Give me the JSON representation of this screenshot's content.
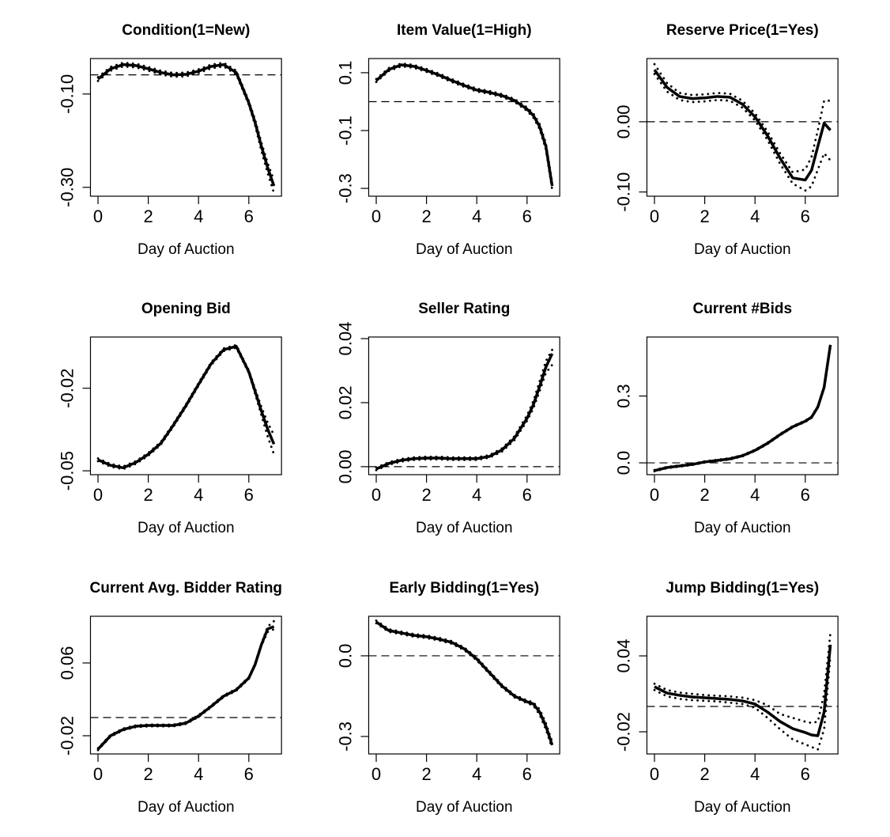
{
  "chart_data": [
    {
      "type": "line",
      "title": "Condition(1=New)",
      "xlabel": "Day of Auction",
      "color": "#000000",
      "x": [
        0,
        0.5,
        1,
        1.5,
        2,
        2.5,
        3,
        3.5,
        4,
        4.5,
        5,
        5.5,
        6,
        6.25,
        6.5,
        6.75,
        7
      ],
      "values": [
        -0.068,
        -0.046,
        -0.037,
        -0.039,
        -0.046,
        -0.054,
        -0.059,
        -0.058,
        -0.051,
        -0.041,
        -0.037,
        -0.054,
        -0.119,
        -0.161,
        -0.212,
        -0.258,
        -0.297
      ],
      "lower": [
        -0.072,
        -0.05,
        -0.041,
        -0.043,
        -0.05,
        -0.058,
        -0.063,
        -0.062,
        -0.055,
        -0.045,
        -0.041,
        -0.058,
        -0.123,
        -0.167,
        -0.222,
        -0.27,
        -0.312
      ],
      "upper": [
        -0.064,
        -0.042,
        -0.033,
        -0.035,
        -0.042,
        -0.05,
        -0.055,
        -0.054,
        -0.047,
        -0.037,
        -0.033,
        -0.05,
        -0.115,
        -0.155,
        -0.204,
        -0.248,
        -0.285
      ],
      "hline": -0.059,
      "xlim": [
        -0.3,
        7.3
      ],
      "ylim": [
        -0.319,
        -0.024
      ],
      "xticks": [
        0,
        2,
        4,
        6
      ],
      "yticks": [
        {
          "value": -0.1,
          "label": "-0.10"
        },
        {
          "value": -0.3,
          "label": "-0.30"
        }
      ]
    },
    {
      "type": "line",
      "title": "Item Value(1=High)",
      "xlabel": "Day of Auction",
      "color": "#000000",
      "x": [
        0,
        0.5,
        1,
        1.5,
        2,
        2.5,
        3,
        3.5,
        4,
        4.5,
        5,
        5.5,
        6,
        6.25,
        6.5,
        6.75,
        7
      ],
      "values": [
        0.073,
        0.111,
        0.127,
        0.122,
        0.108,
        0.092,
        0.073,
        0.056,
        0.04,
        0.032,
        0.021,
        0.004,
        -0.026,
        -0.048,
        -0.086,
        -0.155,
        -0.292
      ],
      "lower": [
        0.068,
        0.106,
        0.122,
        0.117,
        0.103,
        0.087,
        0.068,
        0.051,
        0.035,
        0.027,
        0.016,
        -0.001,
        -0.032,
        -0.055,
        -0.095,
        -0.166,
        -0.305
      ],
      "upper": [
        0.078,
        0.116,
        0.132,
        0.127,
        0.113,
        0.097,
        0.078,
        0.061,
        0.045,
        0.037,
        0.026,
        0.009,
        -0.02,
        -0.041,
        -0.077,
        -0.144,
        -0.28
      ],
      "hline": 0,
      "xlim": [
        -0.3,
        7.3
      ],
      "ylim": [
        -0.327,
        0.149
      ],
      "xticks": [
        0,
        2,
        4,
        6
      ],
      "yticks": [
        0.1,
        -0.1,
        -0.3
      ]
    },
    {
      "type": "line",
      "title": "Reserve Price(1=Yes)",
      "xlabel": "Day of Auction",
      "color": "#000000",
      "x": [
        0,
        0.5,
        1,
        1.5,
        2,
        2.5,
        3,
        3.5,
        4,
        4.5,
        5,
        5.5,
        6,
        6.25,
        6.5,
        6.75,
        7
      ],
      "values": [
        0.074,
        0.049,
        0.036,
        0.033,
        0.034,
        0.036,
        0.035,
        0.025,
        0.007,
        -0.02,
        -0.052,
        -0.08,
        -0.083,
        -0.069,
        -0.035,
        -0.002,
        -0.012
      ],
      "lower": [
        0.068,
        0.043,
        0.031,
        0.028,
        0.029,
        0.031,
        0.03,
        0.02,
        0.002,
        -0.026,
        -0.06,
        -0.088,
        -0.098,
        -0.092,
        -0.068,
        -0.045,
        -0.055
      ],
      "upper": [
        0.082,
        0.055,
        0.041,
        0.038,
        0.039,
        0.041,
        0.04,
        0.03,
        0.012,
        -0.014,
        -0.045,
        -0.072,
        -0.068,
        -0.05,
        -0.012,
        0.03,
        0.03
      ],
      "hline": 0,
      "xlim": [
        -0.3,
        7.3
      ],
      "ylim": [
        -0.106,
        0.09
      ],
      "xticks": [
        0,
        2,
        4,
        6
      ],
      "yticks": [
        {
          "value": 0,
          "label": "0.00"
        },
        {
          "value": -0.1,
          "label": "-0.10"
        }
      ]
    },
    {
      "type": "line",
      "title": "Opening Bid",
      "xlabel": "Day of Auction",
      "color": "#000000",
      "x": [
        0,
        0.5,
        1,
        1.5,
        2,
        2.5,
        3,
        3.5,
        4,
        4.5,
        5,
        5.5,
        6,
        6.25,
        6.5,
        6.75,
        7
      ],
      "values": [
        -0.046,
        -0.048,
        -0.0489,
        -0.047,
        -0.044,
        -0.04,
        -0.0334,
        -0.0263,
        -0.0186,
        -0.0111,
        -0.006,
        -0.0048,
        -0.014,
        -0.0211,
        -0.0283,
        -0.0349,
        -0.0403
      ],
      "lower": [
        -0.0465,
        -0.0485,
        -0.0494,
        -0.0475,
        -0.0445,
        -0.0405,
        -0.0339,
        -0.0268,
        -0.0191,
        -0.0116,
        -0.0065,
        -0.0053,
        -0.0145,
        -0.022,
        -0.0298,
        -0.0375,
        -0.044
      ],
      "upper": [
        -0.0455,
        -0.0475,
        -0.0484,
        -0.0465,
        -0.0435,
        -0.0395,
        -0.0329,
        -0.0258,
        -0.0181,
        -0.0106,
        -0.0055,
        -0.0043,
        -0.0135,
        -0.0202,
        -0.0268,
        -0.0325,
        -0.037
      ],
      "xlim": [
        -0.3,
        7.3
      ],
      "ylim": [
        -0.0514,
        -0.0014
      ],
      "xticks": [
        0,
        2,
        4,
        6
      ],
      "yticks": [
        -0.02,
        -0.05
      ]
    },
    {
      "type": "line",
      "title": "Seller Rating",
      "xlabel": "Day of Auction",
      "color": "#000000",
      "x": [
        0,
        0.5,
        1,
        1.5,
        2,
        2.5,
        3,
        3.5,
        4,
        4.5,
        5,
        5.5,
        6,
        6.25,
        6.5,
        6.75,
        7
      ],
      "values": [
        -0.0007,
        0.001,
        0.002,
        0.0025,
        0.0027,
        0.0027,
        0.0025,
        0.0025,
        0.0025,
        0.0032,
        0.0052,
        0.0089,
        0.0151,
        0.0193,
        0.025,
        0.0311,
        0.0353
      ],
      "lower": [
        -0.0011,
        0.0006,
        0.0016,
        0.0021,
        0.0023,
        0.0023,
        0.0021,
        0.0021,
        0.0021,
        0.0028,
        0.0047,
        0.0083,
        0.0143,
        0.0182,
        0.0236,
        0.0293,
        0.0318
      ],
      "upper": [
        -0.0003,
        0.0014,
        0.0024,
        0.0029,
        0.0031,
        0.0031,
        0.0029,
        0.0029,
        0.0029,
        0.0036,
        0.0057,
        0.0095,
        0.016,
        0.0205,
        0.0266,
        0.033,
        0.0365
      ],
      "hline": 0,
      "xlim": [
        -0.3,
        7.3
      ],
      "ylim": [
        -0.0025,
        0.0405
      ],
      "xticks": [
        0,
        2,
        4,
        6
      ],
      "yticks": [
        {
          "value": 0,
          "label": "0.00"
        },
        0.02,
        0.04
      ]
    },
    {
      "type": "line",
      "title": "Current #Bids",
      "xlabel": "Day of Auction",
      "color": "#000000",
      "x": [
        0,
        0.5,
        1,
        1.5,
        2,
        2.5,
        3,
        3.5,
        4,
        4.5,
        5,
        5.5,
        6,
        6.25,
        6.5,
        6.75,
        7
      ],
      "values": [
        -0.035,
        -0.021,
        -0.014,
        -0.007,
        0.004,
        0.011,
        0.018,
        0.032,
        0.056,
        0.088,
        0.127,
        0.162,
        0.187,
        0.205,
        0.251,
        0.339,
        0.53
      ],
      "lower": [
        -0.038,
        -0.024,
        -0.017,
        -0.01,
        0.001,
        0.008,
        0.015,
        0.029,
        0.053,
        0.085,
        0.124,
        0.159,
        0.184,
        0.202,
        0.248,
        0.336,
        0.527
      ],
      "upper": [
        -0.032,
        -0.018,
        -0.011,
        -0.004,
        0.007,
        0.014,
        0.021,
        0.035,
        0.059,
        0.091,
        0.13,
        0.165,
        0.19,
        0.208,
        0.254,
        0.342,
        0.533
      ],
      "hline": 0,
      "xlim": [
        -0.3,
        7.3
      ],
      "ylim": [
        -0.053,
        0.565
      ],
      "xticks": [
        0,
        2,
        4,
        6
      ],
      "yticks": [
        {
          "value": 0,
          "label": "0.0"
        },
        0.3
      ]
    },
    {
      "type": "line",
      "title": "Current Avg. Bidder Rating",
      "xlabel": "Day of Auction",
      "color": "#000000",
      "x": [
        0,
        0.5,
        1,
        1.5,
        2,
        2.5,
        3,
        3.5,
        4,
        4.5,
        5,
        5.5,
        6,
        6.25,
        6.5,
        6.75,
        7
      ],
      "values": [
        -0.0348,
        -0.02,
        -0.0131,
        -0.0096,
        -0.0087,
        -0.0087,
        -0.0087,
        -0.0061,
        0.0017,
        0.0122,
        0.0235,
        0.0304,
        0.0435,
        0.0583,
        0.08,
        0.0974,
        0.1
      ],
      "lower": [
        -0.0358,
        -0.021,
        -0.0141,
        -0.0106,
        -0.0097,
        -0.0097,
        -0.0097,
        -0.0071,
        0.0007,
        0.0112,
        0.0225,
        0.0294,
        0.0425,
        0.0573,
        0.079,
        0.094,
        0.097
      ],
      "upper": [
        -0.0338,
        -0.019,
        -0.0121,
        -0.0086,
        -0.0077,
        -0.0077,
        -0.0077,
        -0.0051,
        0.0027,
        0.0132,
        0.0245,
        0.0314,
        0.0445,
        0.0593,
        0.081,
        0.1,
        0.106
      ],
      "hline": 0,
      "xlim": [
        -0.3,
        7.3
      ],
      "ylim": [
        -0.04,
        0.1113
      ],
      "xticks": [
        0,
        2,
        4,
        6
      ],
      "yticks": [
        0.06,
        -0.02
      ]
    },
    {
      "type": "line",
      "title": "Early Bidding(1=Yes)",
      "xlabel": "Day of Auction",
      "color": "#000000",
      "x": [
        0,
        0.5,
        1,
        1.5,
        2,
        2.5,
        3,
        3.5,
        4,
        4.5,
        5,
        5.5,
        6,
        6.25,
        6.5,
        6.75,
        7
      ],
      "values": [
        0.126,
        0.094,
        0.085,
        0.076,
        0.071,
        0.062,
        0.05,
        0.026,
        -0.012,
        -0.062,
        -0.112,
        -0.15,
        -0.171,
        -0.179,
        -0.209,
        -0.262,
        -0.332
      ],
      "lower": [
        0.121,
        0.089,
        0.08,
        0.071,
        0.066,
        0.057,
        0.045,
        0.021,
        -0.017,
        -0.067,
        -0.117,
        -0.155,
        -0.176,
        -0.185,
        -0.219,
        -0.274,
        -0.344
      ],
      "upper": [
        0.131,
        0.099,
        0.09,
        0.081,
        0.076,
        0.067,
        0.055,
        0.031,
        -0.007,
        -0.057,
        -0.107,
        -0.145,
        -0.166,
        -0.173,
        -0.199,
        -0.25,
        -0.32
      ],
      "hline": 0,
      "xlim": [
        -0.3,
        7.3
      ],
      "ylim": [
        -0.365,
        0.147
      ],
      "xticks": [
        0,
        2,
        4,
        6
      ],
      "yticks": [
        {
          "value": 0,
          "label": "0.0"
        },
        -0.3
      ]
    },
    {
      "type": "line",
      "title": "Jump Bidding(1=Yes)",
      "xlabel": "Day of Auction",
      "color": "#000000",
      "x": [
        0,
        0.5,
        1,
        1.5,
        2,
        2.5,
        3,
        3.5,
        4,
        4.5,
        5,
        5.5,
        6,
        6.25,
        6.5,
        6.75,
        7
      ],
      "values": [
        0.0156,
        0.0106,
        0.0088,
        0.0075,
        0.0069,
        0.0063,
        0.0056,
        0.0044,
        0.0019,
        -0.0044,
        -0.0119,
        -0.0175,
        -0.0206,
        -0.0225,
        -0.0231,
        -0.0044,
        0.0488
      ],
      "lower": [
        0.013,
        0.008,
        0.006,
        0.005,
        0.0045,
        0.004,
        0.003,
        0.002,
        -0.001,
        -0.009,
        -0.018,
        -0.026,
        -0.03,
        -0.032,
        -0.034,
        -0.018,
        0.04
      ],
      "upper": [
        0.018,
        0.013,
        0.011,
        0.01,
        0.009,
        0.0085,
        0.008,
        0.007,
        0.005,
        0.001,
        -0.006,
        -0.009,
        -0.012,
        -0.013,
        -0.012,
        0.01,
        0.058
      ],
      "hline": 0,
      "xlim": [
        -0.3,
        7.3
      ],
      "ylim": [
        -0.0375,
        0.0713
      ],
      "xticks": [
        0,
        2,
        4,
        6
      ],
      "yticks": [
        0.04,
        -0.02
      ]
    }
  ]
}
